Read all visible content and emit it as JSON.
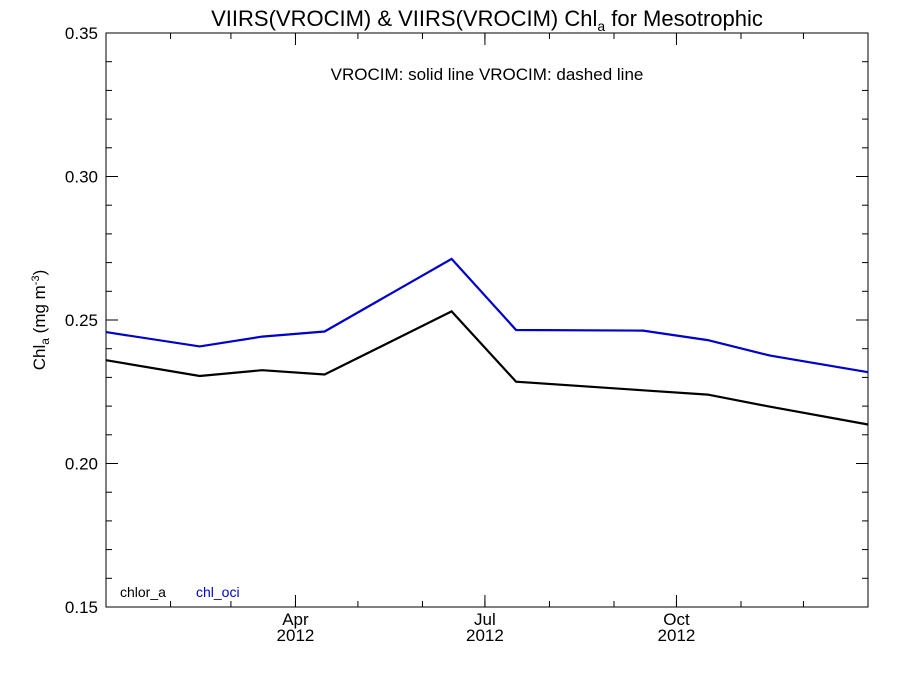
{
  "chart_data": {
    "type": "line",
    "title_parts": {
      "prefix": "VIIRS(VROCIM) & VIIRS(VROCIM)  Chl",
      "sub": "a",
      "suffix": " for Mesotrophic"
    },
    "ylabel_parts": {
      "base": "Chl",
      "sub": "a",
      "unit_open": " (mg m",
      "sup": "-3",
      "unit_close": ")"
    },
    "annotation": "VROCIM: solid line   VROCIM: dashed line",
    "ylim": [
      0.15,
      0.35
    ],
    "y_ticks": [
      "0.15",
      "0.20",
      "0.25",
      "0.30",
      "0.35"
    ],
    "y_tick_values": [
      0.15,
      0.2,
      0.25,
      0.3,
      0.35
    ],
    "xlim": [
      "2012-01-01",
      "2013-01-01"
    ],
    "x_ticks": [
      {
        "date": "2012-04-01",
        "month": "Apr",
        "year": "2012"
      },
      {
        "date": "2012-07-01",
        "month": "Jul",
        "year": "2012"
      },
      {
        "date": "2012-10-01",
        "month": "Oct",
        "year": "2012"
      }
    ],
    "x_minor_dates": [
      "2012-01-01",
      "2012-02-01",
      "2012-03-01",
      "2012-04-01",
      "2012-05-01",
      "2012-06-01",
      "2012-07-01",
      "2012-08-01",
      "2012-09-01",
      "2012-10-01",
      "2012-11-01",
      "2012-12-01",
      "2013-01-01"
    ],
    "grid": false,
    "legend_position": "bottom-left",
    "series": [
      {
        "name": "chlor_a",
        "color": "#000000",
        "x": [
          "2012-01-01",
          "2012-02-15",
          "2012-03-16",
          "2012-04-15",
          "2012-06-15",
          "2012-07-16",
          "2012-09-15",
          "2012-10-16",
          "2012-11-15",
          "2013-01-01"
        ],
        "y": [
          0.236,
          0.2305,
          0.2325,
          0.231,
          0.253,
          0.2285,
          0.2255,
          0.224,
          0.2198,
          0.2136
        ]
      },
      {
        "name": "chl_oci",
        "color": "#0000cc",
        "x": [
          "2012-01-01",
          "2012-02-15",
          "2012-03-16",
          "2012-04-15",
          "2012-06-15",
          "2012-07-16",
          "2012-09-15",
          "2012-10-16",
          "2012-11-15",
          "2013-01-01"
        ],
        "y": [
          0.2458,
          0.2408,
          0.2442,
          0.246,
          0.2713,
          0.2465,
          0.2463,
          0.243,
          0.2376,
          0.2318
        ]
      }
    ]
  }
}
